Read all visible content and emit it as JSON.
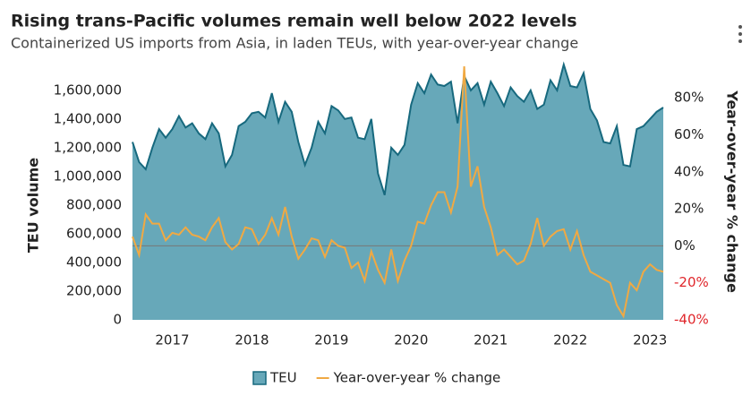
{
  "chart_data": {
    "type": "area-line",
    "title": "Rising trans-Pacific volumes remain well below 2022 levels",
    "subtitle": "Containerized US imports from Asia, in laden TEUs, with year-over-year change",
    "ylabel": "TEU volume",
    "y2label": "Year-over-year % change",
    "categories": [
      null,
      null,
      null,
      null,
      null,
      null,
      "2017",
      null,
      null,
      null,
      null,
      null,
      null,
      null,
      null,
      null,
      null,
      null,
      "2018",
      null,
      null,
      null,
      null,
      null,
      null,
      null,
      null,
      null,
      null,
      null,
      "2019",
      null,
      null,
      null,
      null,
      null,
      null,
      null,
      null,
      null,
      null,
      null,
      "2020",
      null,
      null,
      null,
      null,
      null,
      null,
      null,
      null,
      null,
      null,
      null,
      "2021",
      null,
      null,
      null,
      null,
      null,
      null,
      null,
      null,
      null,
      null,
      null,
      "2022",
      null,
      null,
      null,
      null,
      null,
      null,
      null,
      null,
      null,
      null,
      null,
      "2023",
      null,
      null
    ],
    "series": [
      {
        "name": "TEU",
        "color": "#67a8b9",
        "line_color": "#17697e",
        "values": [
          1240000,
          1100000,
          1050000,
          1200000,
          1330000,
          1270000,
          1330000,
          1420000,
          1340000,
          1370000,
          1300000,
          1260000,
          1370000,
          1300000,
          1070000,
          1150000,
          1350000,
          1380000,
          1440000,
          1450000,
          1410000,
          1580000,
          1380000,
          1520000,
          1450000,
          1240000,
          1080000,
          1200000,
          1380000,
          1300000,
          1490000,
          1460000,
          1400000,
          1410000,
          1270000,
          1260000,
          1400000,
          1020000,
          870000,
          1200000,
          1150000,
          1220000,
          1500000,
          1650000,
          1580000,
          1710000,
          1640000,
          1630000,
          1660000,
          1370000,
          1700000,
          1600000,
          1650000,
          1500000,
          1660000,
          1580000,
          1490000,
          1620000,
          1560000,
          1520000,
          1600000,
          1470000,
          1500000,
          1670000,
          1600000,
          1780000,
          1630000,
          1620000,
          1720000,
          1470000,
          1390000,
          1240000,
          1230000,
          1350000,
          1080000,
          1070000,
          1330000,
          1350000,
          1400000,
          1450000,
          1480000
        ]
      },
      {
        "name": "Year-over-year % change",
        "color": "#f0a943",
        "axis": "y2",
        "values": [
          5,
          -5,
          17,
          12,
          12,
          3,
          7,
          6,
          10,
          6,
          5,
          3,
          10,
          15,
          2,
          -2,
          1,
          10,
          9,
          1,
          6,
          15,
          6,
          21,
          5,
          -7,
          -2,
          4,
          3,
          -6,
          3,
          0,
          -1,
          -12,
          -9,
          -19,
          -3,
          -13,
          -20,
          -2,
          -19,
          -8,
          0,
          13,
          12,
          22,
          29,
          29,
          18,
          32,
          97,
          32,
          43,
          21,
          10,
          -5,
          -2,
          -6,
          -10,
          -8,
          1,
          15,
          0,
          5,
          8,
          9,
          -2,
          8,
          -5,
          -14,
          -16,
          -18,
          -20,
          -32,
          -38,
          -20,
          -24,
          -14,
          -10,
          -13,
          -14
        ]
      }
    ],
    "ylim": [
      0,
      1780000
    ],
    "yticks": [
      0,
      {
        "value": 200000,
        "label": "200,000"
      },
      {
        "value": 400000,
        "label": "400,000"
      },
      {
        "value": 600000,
        "label": "600,000"
      },
      {
        "value": 800000,
        "label": "800,000"
      },
      {
        "value": 1000000,
        "label": "1,000,000"
      },
      {
        "value": 1200000,
        "label": "1,200,000"
      },
      {
        "value": 1400000,
        "label": "1,400,000"
      },
      {
        "value": 1600000,
        "label": "1,600,000"
      }
    ],
    "y2lim": [
      -40,
      98
    ],
    "y2ticks": [
      {
        "value": -40,
        "label": "-40%"
      },
      {
        "value": -20,
        "label": "-20%"
      },
      {
        "value": 0,
        "label": "0%"
      },
      {
        "value": 20,
        "label": "20%"
      },
      {
        "value": 40,
        "label": "40%"
      },
      {
        "value": 60,
        "label": "60%"
      },
      {
        "value": 80,
        "label": "80%"
      }
    ],
    "negative_tick_color": "#e0262b",
    "zero_line_color": "#777777"
  }
}
